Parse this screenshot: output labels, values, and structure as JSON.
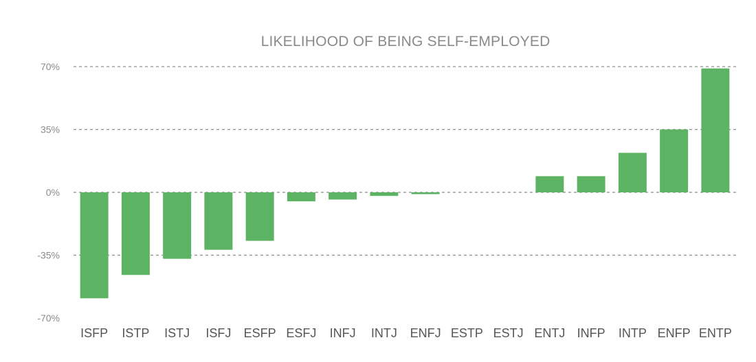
{
  "chart_data": {
    "type": "bar",
    "title": "LIKELIHOOD OF BEING SELF-EMPLOYED",
    "xlabel": "",
    "ylabel": "",
    "ylim": [
      -70,
      70
    ],
    "yticks": [
      70,
      35,
      0,
      -35,
      -70
    ],
    "ytick_labels": [
      "70%",
      "35%",
      "0%",
      "-35%",
      "-70%"
    ],
    "grid": true,
    "bar_color": "#5cb363",
    "categories": [
      "ISFP",
      "ISTP",
      "ISTJ",
      "ISFJ",
      "ESFP",
      "ESFJ",
      "INFJ",
      "INTJ",
      "ENFJ",
      "ESTP",
      "ESTJ",
      "ENTJ",
      "INFP",
      "INTP",
      "ENFP",
      "ENTP"
    ],
    "values": [
      -59,
      -46,
      -37,
      -32,
      -27,
      -5,
      -4,
      -2,
      -1,
      0,
      0,
      9,
      9,
      22,
      35,
      69
    ]
  }
}
